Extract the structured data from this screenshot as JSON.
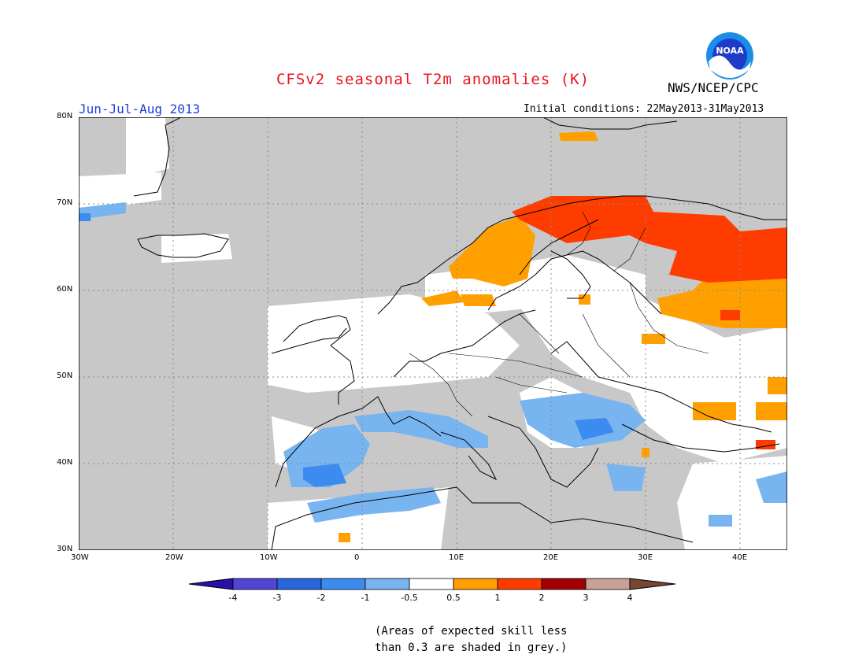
{
  "header": {
    "title": "CFSv2 seasonal T2m anomalies (K)",
    "season": "Jun-Jul-Aug 2013",
    "initial_conditions": "Initial conditions: 22May2013-31May2013",
    "organization": "NWS/NCEP/CPC",
    "logo_text": "NOAA"
  },
  "map": {
    "region": "Europe",
    "lon_range": [
      -30,
      45
    ],
    "lat_range": [
      30,
      80
    ],
    "lat_ticks": [
      "30N",
      "40N",
      "50N",
      "60N",
      "70N",
      "80N"
    ],
    "lon_ticks": [
      "30W",
      "20W",
      "10W",
      "0",
      "10E",
      "20E",
      "30E",
      "40E"
    ],
    "colors": {
      "low_skill": "#c8c8c8",
      "neutral": "#ffffff",
      "cold_1": "#6aaef0",
      "cold_2": "#3c8cf0",
      "warm_1": "#ffa000",
      "warm_2": "#ff3c00"
    }
  },
  "colorbar": {
    "labels": [
      "-4",
      "-3",
      "-2",
      "-1",
      "-0.5",
      "0.5",
      "1",
      "2",
      "3",
      "4"
    ],
    "colors": [
      "#2a10a8",
      "#5046d2",
      "#2864dc",
      "#3c8cf0",
      "#78b4f0",
      "#ffffff",
      "#ffa000",
      "#ff3c00",
      "#a00000",
      "#c8a096",
      "#784632"
    ]
  },
  "footnote": {
    "line1": "(Areas of expected skill less",
    "line2": "than 0.3 are shaded in grey.)"
  }
}
